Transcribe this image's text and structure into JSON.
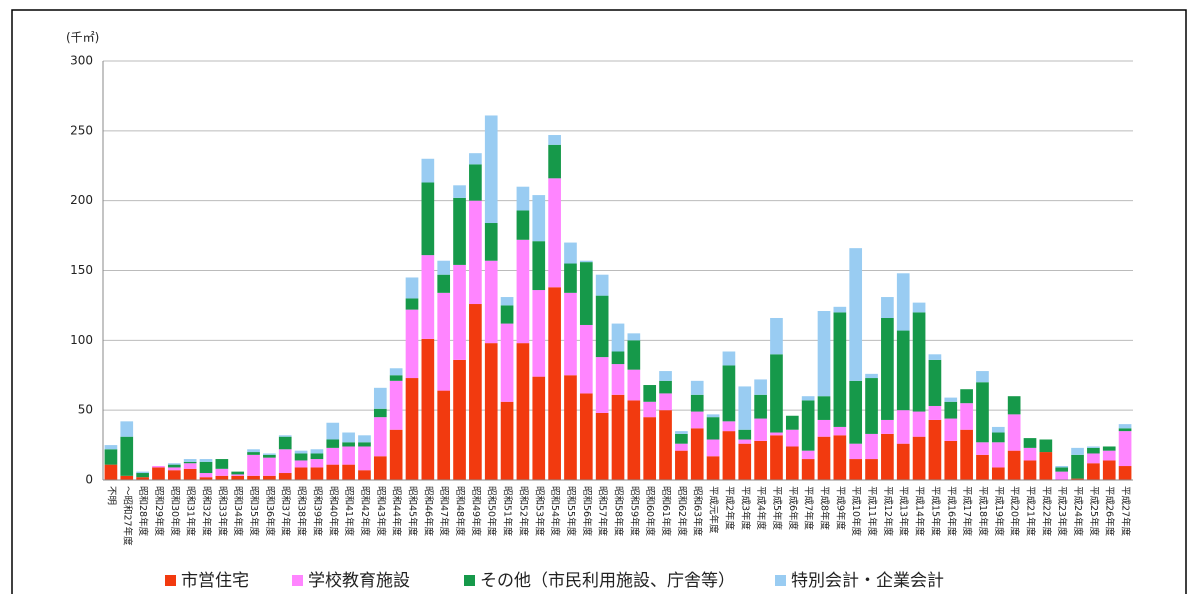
{
  "chart_data": {
    "type": "stacked_bar",
    "y_label": "(千㎡)",
    "categories": [
      "不明",
      "～昭和27年度",
      "昭和28年度",
      "昭和29年度",
      "昭和30年度",
      "昭和31年度",
      "昭和32年度",
      "昭和33年度",
      "昭和34年度",
      "昭和35年度",
      "昭和36年度",
      "昭和37年度",
      "昭和38年度",
      "昭和39年度",
      "昭和40年度",
      "昭和41年度",
      "昭和42年度",
      "昭和43年度",
      "昭和44年度",
      "昭和45年度",
      "昭和46年度",
      "昭和47年度",
      "昭和48年度",
      "昭和49年度",
      "昭和50年度",
      "昭和51年度",
      "昭和52年度",
      "昭和53年度",
      "昭和54年度",
      "昭和55年度",
      "昭和56年度",
      "昭和57年度",
      "昭和58年度",
      "昭和59年度",
      "昭和60年度",
      "昭和61年度",
      "昭和62年度",
      "昭和63年度",
      "平成元年度",
      "平成2年度",
      "平成3年度",
      "平成4年度",
      "平成5年度",
      "平成6年度",
      "平成7年度",
      "平成8年度",
      "平成9年度",
      "平成10年度",
      "平成11年度",
      "平成12年度",
      "平成13年度",
      "平成14年度",
      "平成15年度",
      "平成16年度",
      "平成17年度",
      "平成18年度",
      "平成19年度",
      "平成20年度",
      "平成21年度",
      "平成22年度",
      "平成23年度",
      "平成24年度",
      "平成25年度",
      "平成26年度",
      "平成27年度"
    ],
    "series": [
      {
        "name": "市営住宅",
        "color": "#f23a0f",
        "values": [
          11,
          3,
          2,
          9,
          7,
          8,
          2,
          3,
          3,
          3,
          3,
          5,
          9,
          9,
          11,
          11,
          7,
          17,
          36,
          73,
          101,
          64,
          86,
          126,
          98,
          56,
          98,
          74,
          138,
          75,
          62,
          48,
          61,
          57,
          45,
          50,
          21,
          37,
          17,
          35,
          26,
          28,
          32,
          24,
          15,
          31,
          32,
          15,
          15,
          33,
          26,
          31,
          43,
          28,
          36,
          18,
          9,
          21,
          14,
          20,
          0,
          1,
          12,
          14,
          10
        ]
      },
      {
        "name": "学校教育施設",
        "color": "#ff85ff",
        "values": [
          0,
          0,
          0,
          1,
          2,
          4,
          3,
          5,
          1,
          15,
          13,
          17,
          5,
          6,
          12,
          13,
          17,
          28,
          35,
          49,
          60,
          70,
          68,
          74,
          59,
          56,
          74,
          62,
          78,
          59,
          49,
          40,
          22,
          22,
          11,
          12,
          5,
          12,
          12,
          7,
          3,
          16,
          2,
          12,
          6,
          12,
          6,
          11,
          18,
          10,
          24,
          18,
          10,
          16,
          19,
          9,
          18,
          26,
          9,
          0,
          6,
          0,
          7,
          7,
          25
        ]
      },
      {
        "name": "その他（市民利用施設、庁舎等）",
        "color": "#16994a",
        "values": [
          11,
          28,
          3,
          0,
          2,
          1,
          8,
          7,
          2,
          2,
          2,
          9,
          5,
          4,
          6,
          3,
          3,
          6,
          4,
          8,
          52,
          13,
          48,
          26,
          27,
          13,
          21,
          35,
          24,
          21,
          45,
          44,
          9,
          21,
          12,
          9,
          7,
          12,
          16,
          40,
          7,
          17,
          56,
          10,
          36,
          17,
          82,
          45,
          40,
          73,
          57,
          71,
          33,
          12,
          10,
          43,
          7,
          13,
          7,
          9,
          3,
          17,
          4,
          3,
          2
        ]
      },
      {
        "name": "特別会計・企業会計",
        "color": "#99ccf2",
        "values": [
          3,
          11,
          1,
          0,
          1,
          2,
          2,
          0,
          0,
          2,
          1,
          1,
          2,
          3,
          12,
          7,
          5,
          15,
          5,
          15,
          17,
          10,
          9,
          8,
          77,
          6,
          17,
          33,
          7,
          15,
          1,
          15,
          20,
          5,
          0,
          7,
          2,
          10,
          2,
          10,
          31,
          11,
          26,
          0,
          3,
          61,
          4,
          95,
          3,
          15,
          41,
          7,
          4,
          3,
          0,
          8,
          4,
          0,
          0,
          0,
          1,
          5,
          1,
          0,
          3
        ]
      }
    ],
    "ylim": [
      0,
      300
    ],
    "yticks": [
      0,
      50,
      100,
      150,
      200,
      250,
      300
    ],
    "grid": true
  }
}
